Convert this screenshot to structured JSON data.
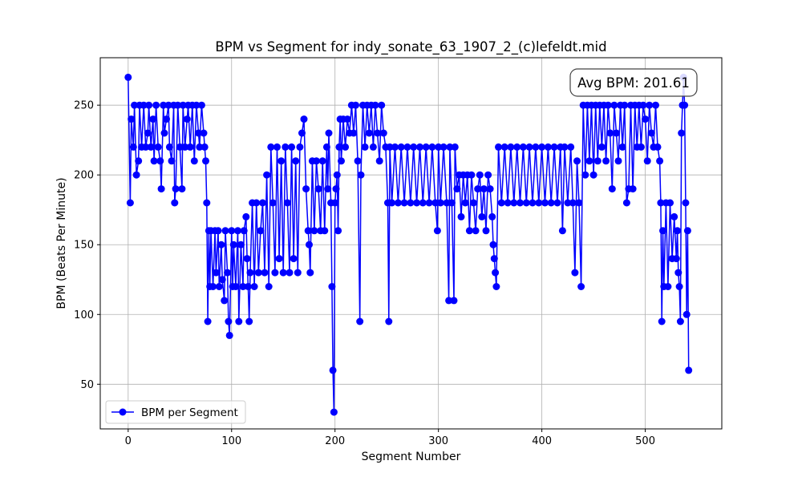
{
  "chart_data": {
    "type": "line",
    "title": "BPM vs Segment for indy_sonate_63_1907_2_(c)lefeldt.mid",
    "xlabel": "Segment Number",
    "ylabel": "BPM (Beats Per Minute)",
    "xlim": [
      -27,
      574
    ],
    "ylim": [
      18,
      284
    ],
    "xticks": [
      0,
      100,
      200,
      300,
      400,
      500
    ],
    "yticks": [
      50,
      100,
      150,
      200,
      250
    ],
    "grid": true,
    "legend_position": "lower-left",
    "annotation": "Avg BPM: 201.61",
    "series": [
      {
        "name": "BPM per Segment",
        "color": "#0000ff",
        "marker": "circle",
        "points": [
          [
            0,
            270
          ],
          [
            2,
            180
          ],
          [
            3,
            240
          ],
          [
            5,
            220
          ],
          [
            6,
            250
          ],
          [
            8,
            200
          ],
          [
            10,
            210
          ],
          [
            11,
            250
          ],
          [
            13,
            220
          ],
          [
            15,
            250
          ],
          [
            17,
            220
          ],
          [
            19,
            230
          ],
          [
            20,
            250
          ],
          [
            22,
            220
          ],
          [
            24,
            240
          ],
          [
            25,
            210
          ],
          [
            27,
            250
          ],
          [
            29,
            220
          ],
          [
            31,
            210
          ],
          [
            32,
            190
          ],
          [
            34,
            250
          ],
          [
            35,
            230
          ],
          [
            37,
            240
          ],
          [
            39,
            250
          ],
          [
            40,
            220
          ],
          [
            42,
            210
          ],
          [
            44,
            250
          ],
          [
            45,
            180
          ],
          [
            46,
            190
          ],
          [
            48,
            250
          ],
          [
            50,
            220
          ],
          [
            52,
            190
          ],
          [
            53,
            250
          ],
          [
            55,
            220
          ],
          [
            57,
            240
          ],
          [
            58,
            250
          ],
          [
            60,
            220
          ],
          [
            62,
            250
          ],
          [
            64,
            210
          ],
          [
            66,
            250
          ],
          [
            68,
            230
          ],
          [
            69,
            220
          ],
          [
            71,
            250
          ],
          [
            73,
            230
          ],
          [
            74,
            220
          ],
          [
            75,
            210
          ],
          [
            76,
            180
          ],
          [
            77,
            95
          ],
          [
            78,
            160
          ],
          [
            79,
            120
          ],
          [
            80,
            160
          ],
          [
            82,
            120
          ],
          [
            84,
            160
          ],
          [
            85,
            130
          ],
          [
            87,
            160
          ],
          [
            88,
            120
          ],
          [
            90,
            150
          ],
          [
            91,
            125
          ],
          [
            93,
            110
          ],
          [
            94,
            160
          ],
          [
            96,
            130
          ],
          [
            97,
            95
          ],
          [
            98,
            85
          ],
          [
            100,
            160
          ],
          [
            101,
            120
          ],
          [
            102,
            150
          ],
          [
            104,
            120
          ],
          [
            106,
            160
          ],
          [
            107,
            95
          ],
          [
            109,
            150
          ],
          [
            111,
            120
          ],
          [
            112,
            160
          ],
          [
            114,
            170
          ],
          [
            115,
            140
          ],
          [
            116,
            120
          ],
          [
            117,
            95
          ],
          [
            118,
            130
          ],
          [
            120,
            180
          ],
          [
            122,
            120
          ],
          [
            124,
            180
          ],
          [
            126,
            130
          ],
          [
            128,
            160
          ],
          [
            130,
            180
          ],
          [
            132,
            130
          ],
          [
            134,
            200
          ],
          [
            136,
            120
          ],
          [
            138,
            220
          ],
          [
            140,
            180
          ],
          [
            142,
            130
          ],
          [
            144,
            220
          ],
          [
            146,
            140
          ],
          [
            148,
            210
          ],
          [
            150,
            130
          ],
          [
            152,
            220
          ],
          [
            154,
            180
          ],
          [
            156,
            130
          ],
          [
            158,
            220
          ],
          [
            160,
            140
          ],
          [
            162,
            210
          ],
          [
            164,
            130
          ],
          [
            166,
            220
          ],
          [
            168,
            230
          ],
          [
            170,
            240
          ],
          [
            172,
            190
          ],
          [
            174,
            160
          ],
          [
            175,
            150
          ],
          [
            176,
            130
          ],
          [
            178,
            210
          ],
          [
            180,
            160
          ],
          [
            182,
            210
          ],
          [
            184,
            190
          ],
          [
            186,
            160
          ],
          [
            188,
            210
          ],
          [
            190,
            160
          ],
          [
            192,
            220
          ],
          [
            193,
            190
          ],
          [
            194,
            230
          ],
          [
            196,
            180
          ],
          [
            197,
            120
          ],
          [
            198,
            60
          ],
          [
            199,
            30
          ],
          [
            200,
            180
          ],
          [
            201,
            190
          ],
          [
            202,
            200
          ],
          [
            203,
            160
          ],
          [
            204,
            220
          ],
          [
            205,
            240
          ],
          [
            206,
            210
          ],
          [
            208,
            240
          ],
          [
            210,
            220
          ],
          [
            212,
            240
          ],
          [
            214,
            230
          ],
          [
            216,
            250
          ],
          [
            218,
            230
          ],
          [
            220,
            250
          ],
          [
            222,
            210
          ],
          [
            224,
            95
          ],
          [
            225,
            200
          ],
          [
            227,
            250
          ],
          [
            229,
            220
          ],
          [
            231,
            250
          ],
          [
            233,
            230
          ],
          [
            235,
            250
          ],
          [
            237,
            220
          ],
          [
            239,
            250
          ],
          [
            241,
            230
          ],
          [
            243,
            210
          ],
          [
            245,
            250
          ],
          [
            247,
            230
          ],
          [
            249,
            220
          ],
          [
            251,
            180
          ],
          [
            252,
            95
          ],
          [
            253,
            220
          ],
          [
            255,
            180
          ],
          [
            258,
            220
          ],
          [
            261,
            180
          ],
          [
            264,
            220
          ],
          [
            267,
            180
          ],
          [
            270,
            220
          ],
          [
            273,
            180
          ],
          [
            276,
            220
          ],
          [
            279,
            180
          ],
          [
            282,
            220
          ],
          [
            285,
            180
          ],
          [
            288,
            220
          ],
          [
            291,
            180
          ],
          [
            294,
            220
          ],
          [
            297,
            180
          ],
          [
            299,
            160
          ],
          [
            300,
            220
          ],
          [
            302,
            180
          ],
          [
            305,
            220
          ],
          [
            308,
            180
          ],
          [
            310,
            110
          ],
          [
            311,
            220
          ],
          [
            313,
            180
          ],
          [
            315,
            110
          ],
          [
            316,
            220
          ],
          [
            318,
            190
          ],
          [
            320,
            200
          ],
          [
            322,
            170
          ],
          [
            324,
            200
          ],
          [
            326,
            180
          ],
          [
            328,
            200
          ],
          [
            330,
            160
          ],
          [
            332,
            200
          ],
          [
            334,
            180
          ],
          [
            336,
            160
          ],
          [
            338,
            190
          ],
          [
            340,
            200
          ],
          [
            342,
            170
          ],
          [
            344,
            190
          ],
          [
            346,
            160
          ],
          [
            348,
            200
          ],
          [
            350,
            190
          ],
          [
            352,
            170
          ],
          [
            353,
            150
          ],
          [
            354,
            140
          ],
          [
            355,
            130
          ],
          [
            356,
            120
          ],
          [
            358,
            220
          ],
          [
            361,
            180
          ],
          [
            364,
            220
          ],
          [
            367,
            180
          ],
          [
            370,
            220
          ],
          [
            373,
            180
          ],
          [
            376,
            220
          ],
          [
            379,
            180
          ],
          [
            382,
            220
          ],
          [
            385,
            180
          ],
          [
            388,
            220
          ],
          [
            391,
            180
          ],
          [
            394,
            220
          ],
          [
            397,
            180
          ],
          [
            400,
            220
          ],
          [
            403,
            180
          ],
          [
            406,
            220
          ],
          [
            409,
            180
          ],
          [
            412,
            220
          ],
          [
            415,
            180
          ],
          [
            418,
            220
          ],
          [
            420,
            160
          ],
          [
            422,
            220
          ],
          [
            425,
            180
          ],
          [
            428,
            220
          ],
          [
            430,
            180
          ],
          [
            432,
            130
          ],
          [
            434,
            210
          ],
          [
            436,
            180
          ],
          [
            438,
            120
          ],
          [
            440,
            250
          ],
          [
            442,
            200
          ],
          [
            444,
            250
          ],
          [
            446,
            210
          ],
          [
            448,
            250
          ],
          [
            450,
            200
          ],
          [
            452,
            250
          ],
          [
            454,
            210
          ],
          [
            456,
            250
          ],
          [
            458,
            220
          ],
          [
            460,
            250
          ],
          [
            462,
            210
          ],
          [
            464,
            250
          ],
          [
            466,
            230
          ],
          [
            468,
            190
          ],
          [
            470,
            250
          ],
          [
            472,
            230
          ],
          [
            474,
            210
          ],
          [
            476,
            250
          ],
          [
            478,
            220
          ],
          [
            480,
            250
          ],
          [
            482,
            180
          ],
          [
            484,
            190
          ],
          [
            486,
            250
          ],
          [
            488,
            190
          ],
          [
            490,
            250
          ],
          [
            492,
            220
          ],
          [
            494,
            250
          ],
          [
            496,
            220
          ],
          [
            498,
            250
          ],
          [
            500,
            240
          ],
          [
            502,
            210
          ],
          [
            504,
            250
          ],
          [
            506,
            230
          ],
          [
            508,
            220
          ],
          [
            510,
            250
          ],
          [
            512,
            220
          ],
          [
            514,
            210
          ],
          [
            515,
            180
          ],
          [
            516,
            95
          ],
          [
            517,
            160
          ],
          [
            518,
            120
          ],
          [
            520,
            180
          ],
          [
            522,
            120
          ],
          [
            524,
            180
          ],
          [
            526,
            140
          ],
          [
            528,
            170
          ],
          [
            530,
            140
          ],
          [
            531,
            160
          ],
          [
            532,
            130
          ],
          [
            533,
            120
          ],
          [
            534,
            95
          ],
          [
            535,
            230
          ],
          [
            536,
            250
          ],
          [
            537,
            270
          ],
          [
            538,
            250
          ],
          [
            539,
            180
          ],
          [
            540,
            100
          ],
          [
            541,
            160
          ],
          [
            542,
            60
          ]
        ]
      }
    ]
  }
}
